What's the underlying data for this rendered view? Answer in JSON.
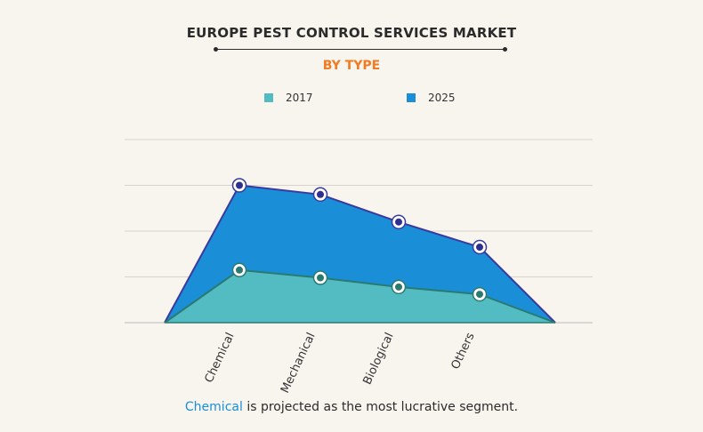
{
  "title": "EUROPE PEST CONTROL SERVICES MARKET",
  "subtitle": "BY TYPE",
  "legend": [
    {
      "label": "2017",
      "color": "#52bcc2"
    },
    {
      "label": "2025",
      "color": "#1a8fd8"
    }
  ],
  "footer": {
    "highlight": "Chemical",
    "rest": " is projected as the most lucrative segment."
  },
  "chart_data": {
    "type": "area",
    "categories": [
      "Chemical",
      "Mechanical",
      "Biological",
      "Others"
    ],
    "series": [
      {
        "name": "2025",
        "values": [
          3.0,
          2.8,
          2.2,
          1.65
        ],
        "color": "#1a8fd8"
      },
      {
        "name": "2017",
        "values": [
          1.15,
          0.98,
          0.78,
          0.62
        ],
        "color": "#52bcc2"
      }
    ],
    "ylim": [
      0,
      4
    ],
    "grid": true,
    "legend_position": "top",
    "xlabel": "",
    "ylabel": ""
  }
}
